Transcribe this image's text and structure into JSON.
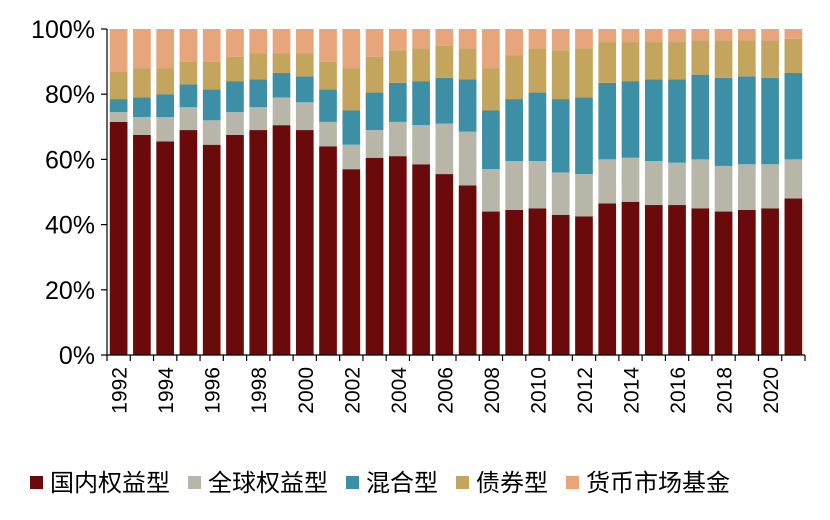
{
  "chart_data": {
    "type": "bar",
    "stacked": true,
    "normalized": true,
    "title": "",
    "xlabel": "",
    "ylabel": "",
    "ylim": [
      0,
      100
    ],
    "y_tick_labels": [
      "0%",
      "20%",
      "40%",
      "60%",
      "80%",
      "100%"
    ],
    "x_tick_labels": [
      "1992",
      "1994",
      "1996",
      "1998",
      "2000",
      "2002",
      "2004",
      "2006",
      "2008",
      "2010",
      "2012",
      "2014",
      "2016",
      "2018",
      "2020"
    ],
    "grid": false,
    "legend_position": "bottom",
    "categories": [
      "1992",
      "1993",
      "1994",
      "1995",
      "1996",
      "1997",
      "1998",
      "1999",
      "2000",
      "2001",
      "2002",
      "2003",
      "2004",
      "2005",
      "2006",
      "2007",
      "2008",
      "2009",
      "2010",
      "2011",
      "2012",
      "2013",
      "2014",
      "2015",
      "2016",
      "2017",
      "2018",
      "2019",
      "2020",
      "2021"
    ],
    "series": [
      {
        "name": "国内权益型",
        "color": "#6B0A0A",
        "values": [
          71.5,
          67.5,
          65.5,
          69,
          64.5,
          67.5,
          69,
          70.5,
          69,
          64,
          57,
          60.5,
          61,
          58.5,
          55.5,
          52,
          44,
          44.5,
          45,
          43,
          42.5,
          46.5,
          47,
          46,
          46,
          45,
          44,
          44.5,
          45,
          48
        ]
      },
      {
        "name": "全球权益型",
        "color": "#B8B6A8",
        "values": [
          3,
          5.5,
          7.5,
          7,
          7.5,
          7,
          7,
          8.5,
          8.5,
          7.5,
          7.5,
          8.5,
          10.5,
          12,
          15.5,
          16.5,
          13,
          15,
          14.5,
          13,
          13,
          13.5,
          13.5,
          13.5,
          13,
          15,
          14,
          14,
          13.5,
          12
        ]
      },
      {
        "name": "混合型",
        "color": "#3D8FA6",
        "values": [
          4,
          6,
          7,
          7,
          9.5,
          9.5,
          8.5,
          7.5,
          8,
          10,
          10.5,
          11.5,
          12,
          13.5,
          14,
          16,
          18,
          19,
          21,
          22.5,
          23.5,
          23.5,
          23.5,
          25,
          25.5,
          26,
          27,
          27,
          26.5,
          26.5
        ]
      },
      {
        "name": "债券型",
        "color": "#C4A55E",
        "values": [
          8.5,
          9,
          8,
          7,
          8.5,
          7.5,
          8,
          6,
          7,
          8.5,
          13,
          11,
          10,
          10,
          10,
          9.5,
          13,
          13.5,
          13.5,
          15,
          15,
          12.5,
          12,
          11.5,
          11.5,
          10.5,
          11.5,
          11,
          11.5,
          10.5
        ]
      },
      {
        "name": "货币市场基金",
        "color": "#E6A57A",
        "values": [
          13,
          12,
          12,
          10,
          10,
          8.5,
          7.5,
          7.5,
          7.5,
          10,
          12,
          8.5,
          6.5,
          6,
          5,
          6,
          12,
          8,
          6,
          6.5,
          6,
          4,
          4,
          4,
          4,
          3.5,
          3.5,
          3.5,
          3.5,
          3
        ]
      }
    ]
  }
}
